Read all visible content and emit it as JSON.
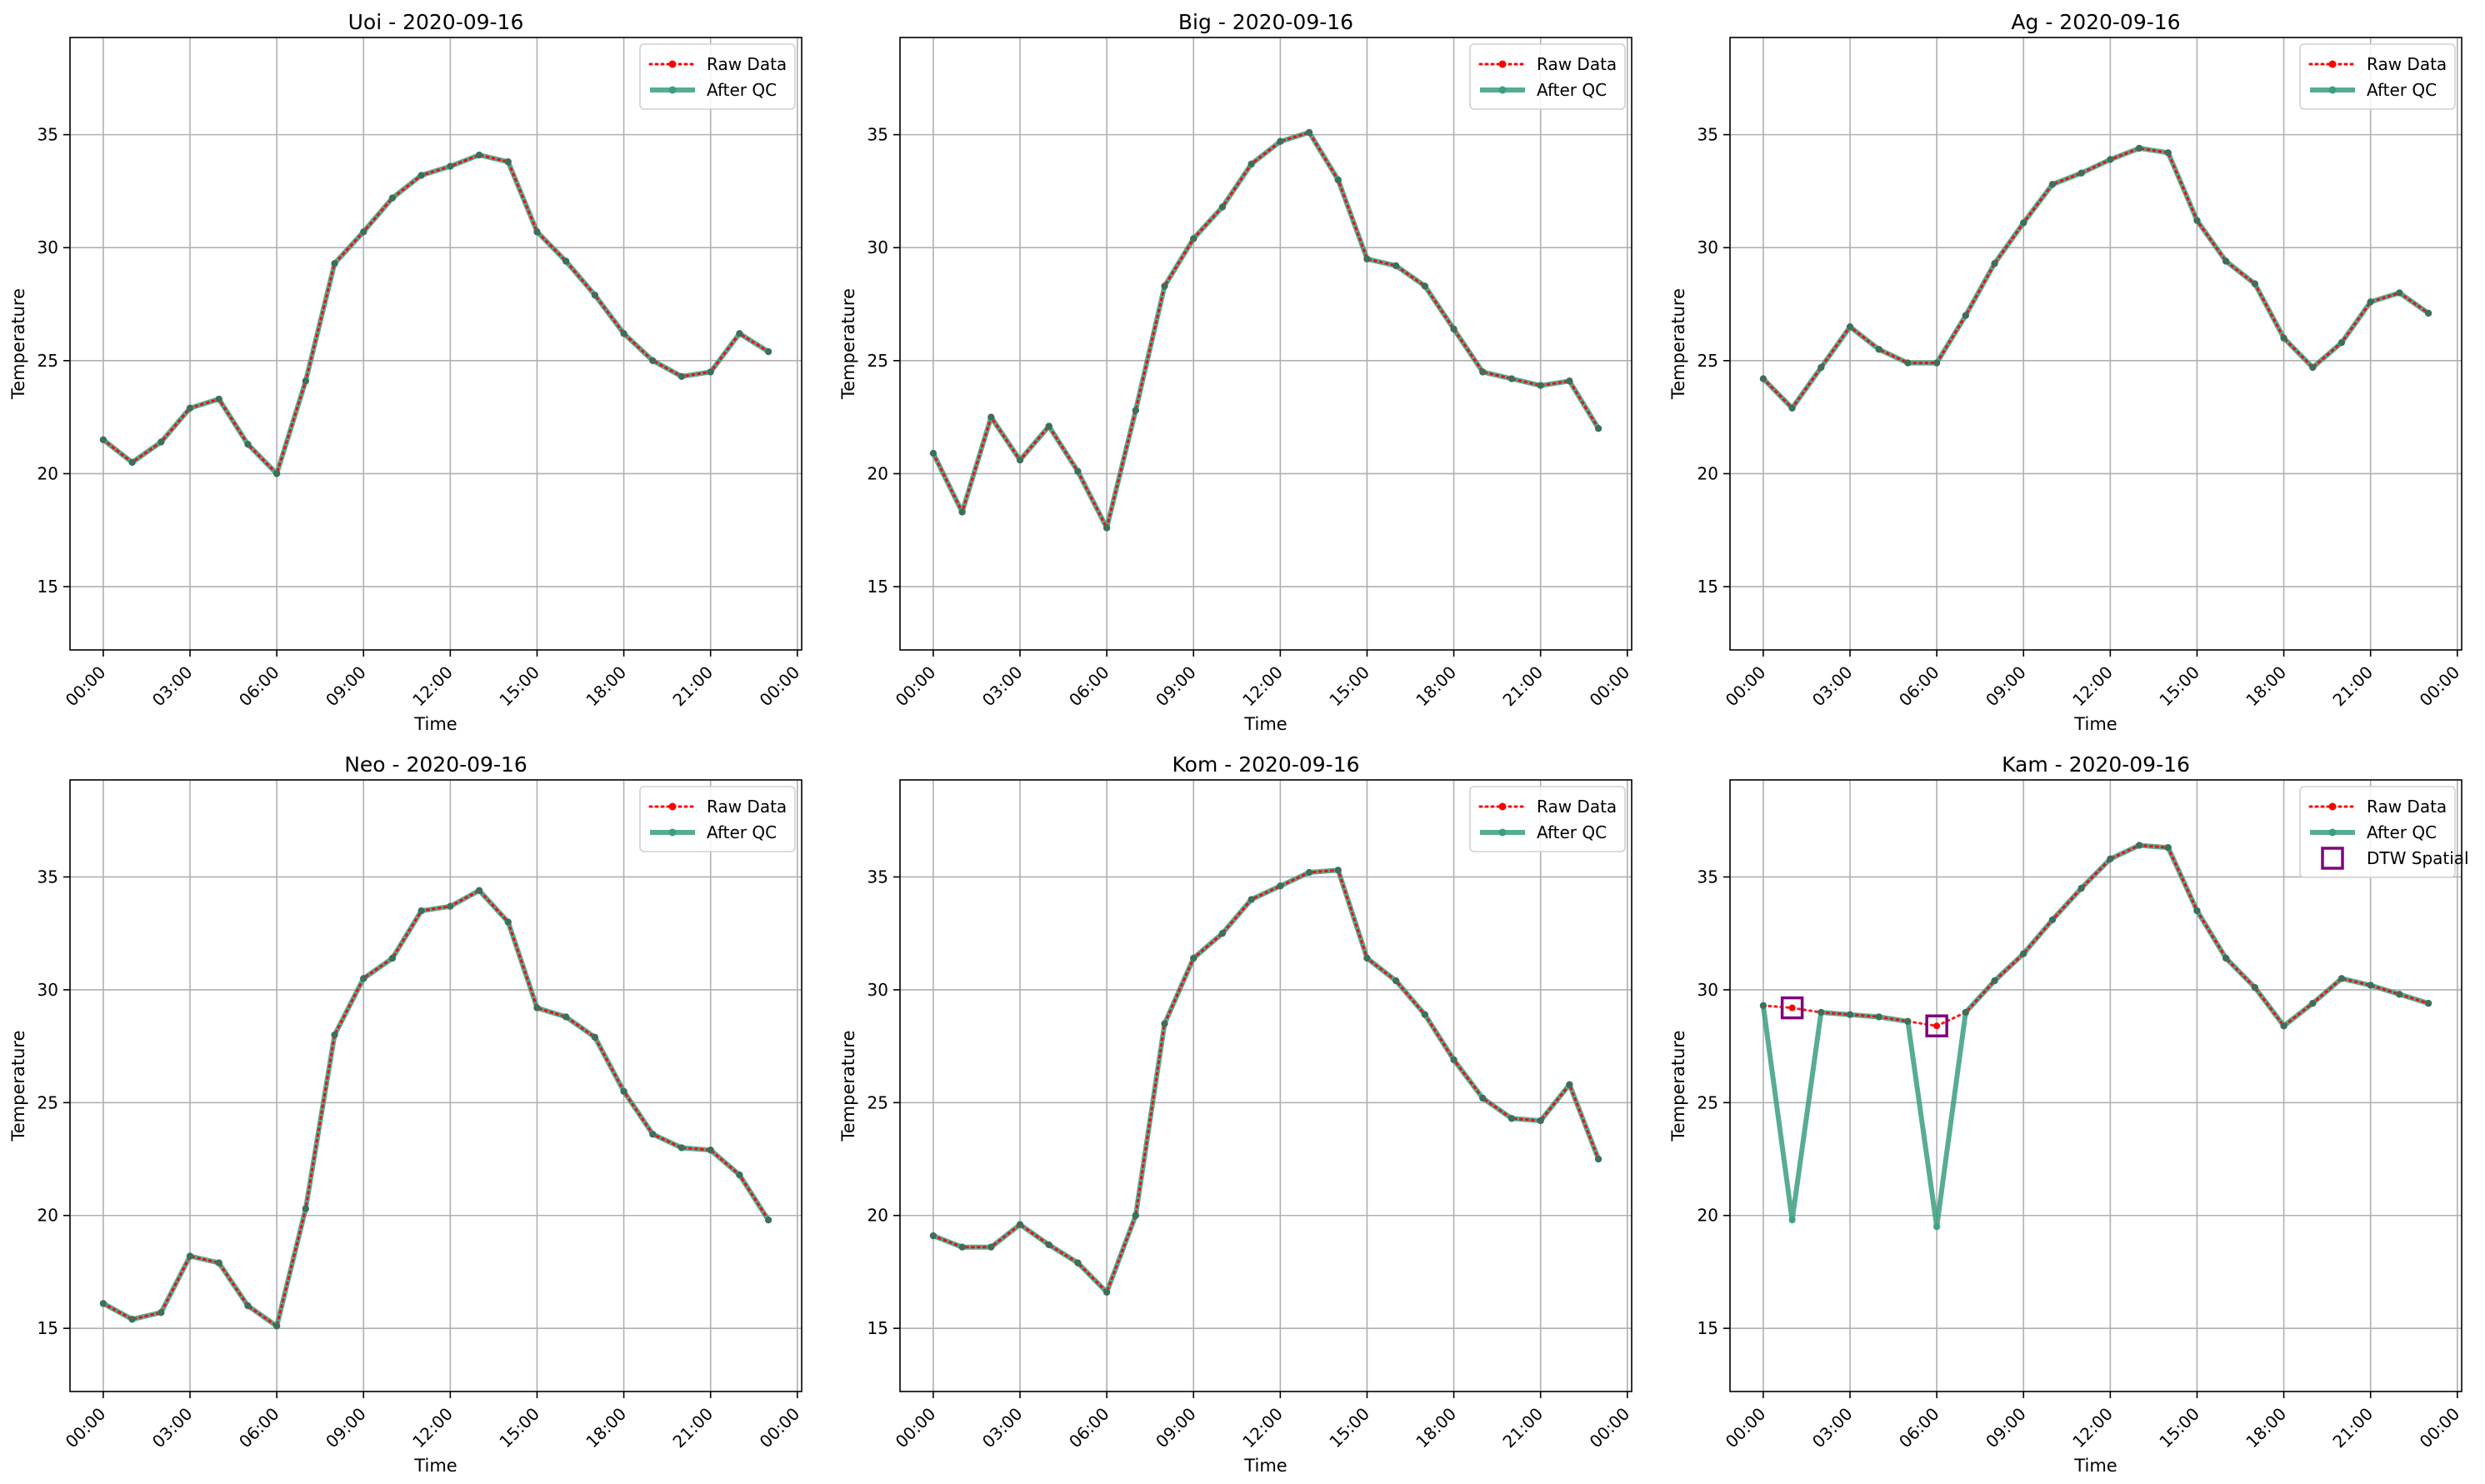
{
  "chart_data": [
    {
      "type": "line",
      "title": "Uoi - 2020-09-16",
      "xlabel": "Time",
      "ylabel": "Temperature",
      "x": [
        "00:00",
        "01:00",
        "02:00",
        "03:00",
        "04:00",
        "05:00",
        "06:00",
        "07:00",
        "08:00",
        "09:00",
        "10:00",
        "11:00",
        "12:00",
        "13:00",
        "14:00",
        "15:00",
        "16:00",
        "17:00",
        "18:00",
        "19:00",
        "20:00",
        "21:00",
        "22:00",
        "23:00"
      ],
      "xticks": [
        "00:00",
        "03:00",
        "06:00",
        "09:00",
        "12:00",
        "15:00",
        "18:00",
        "21:00",
        "00:00"
      ],
      "yticks": [
        15,
        20,
        25,
        30,
        35
      ],
      "ylim": [
        12.2,
        39.3
      ],
      "grid": true,
      "legend": "top-right",
      "series": [
        {
          "name": "Raw Data",
          "values": [
            21.5,
            20.5,
            21.4,
            22.9,
            23.3,
            21.3,
            20.0,
            24.1,
            29.3,
            30.7,
            32.2,
            33.2,
            33.6,
            34.1,
            33.8,
            30.7,
            29.4,
            27.9,
            26.2,
            25.0,
            24.3,
            24.5,
            26.2,
            25.4
          ]
        },
        {
          "name": "After QC",
          "values": [
            21.5,
            20.5,
            21.4,
            22.9,
            23.3,
            21.3,
            20.0,
            24.1,
            29.3,
            30.7,
            32.2,
            33.2,
            33.6,
            34.1,
            33.8,
            30.7,
            29.4,
            27.9,
            26.2,
            25.0,
            24.3,
            24.5,
            26.2,
            25.4
          ]
        }
      ]
    },
    {
      "type": "line",
      "title": "Big - 2020-09-16",
      "xlabel": "Time",
      "ylabel": "Temperature",
      "x": [
        "00:00",
        "01:00",
        "02:00",
        "03:00",
        "04:00",
        "05:00",
        "06:00",
        "07:00",
        "08:00",
        "09:00",
        "10:00",
        "11:00",
        "12:00",
        "13:00",
        "14:00",
        "15:00",
        "16:00",
        "17:00",
        "18:00",
        "19:00",
        "20:00",
        "21:00",
        "22:00",
        "23:00"
      ],
      "xticks": [
        "00:00",
        "03:00",
        "06:00",
        "09:00",
        "12:00",
        "15:00",
        "18:00",
        "21:00",
        "00:00"
      ],
      "yticks": [
        15,
        20,
        25,
        30,
        35
      ],
      "ylim": [
        12.2,
        39.3
      ],
      "grid": true,
      "legend": "top-right",
      "series": [
        {
          "name": "Raw Data",
          "values": [
            20.9,
            18.3,
            22.5,
            20.6,
            22.1,
            20.1,
            17.6,
            22.8,
            28.3,
            30.4,
            31.8,
            33.7,
            34.7,
            35.1,
            33.0,
            29.5,
            29.2,
            28.3,
            26.4,
            24.5,
            24.2,
            23.9,
            24.1,
            22.0
          ]
        },
        {
          "name": "After QC",
          "values": [
            20.9,
            18.3,
            22.5,
            20.6,
            22.1,
            20.1,
            17.6,
            22.8,
            28.3,
            30.4,
            31.8,
            33.7,
            34.7,
            35.1,
            33.0,
            29.5,
            29.2,
            28.3,
            26.4,
            24.5,
            24.2,
            23.9,
            24.1,
            22.0
          ]
        }
      ]
    },
    {
      "type": "line",
      "title": "Ag - 2020-09-16",
      "xlabel": "Time",
      "ylabel": "Temperature",
      "x": [
        "00:00",
        "01:00",
        "02:00",
        "03:00",
        "04:00",
        "05:00",
        "06:00",
        "07:00",
        "08:00",
        "09:00",
        "10:00",
        "11:00",
        "12:00",
        "13:00",
        "14:00",
        "15:00",
        "16:00",
        "17:00",
        "18:00",
        "19:00",
        "20:00",
        "21:00",
        "22:00",
        "23:00"
      ],
      "xticks": [
        "00:00",
        "03:00",
        "06:00",
        "09:00",
        "12:00",
        "15:00",
        "18:00",
        "21:00",
        "00:00"
      ],
      "yticks": [
        15,
        20,
        25,
        30,
        35
      ],
      "ylim": [
        12.2,
        39.3
      ],
      "grid": true,
      "legend": "top-right",
      "series": [
        {
          "name": "Raw Data",
          "values": [
            24.2,
            22.9,
            24.7,
            26.5,
            25.5,
            24.9,
            24.9,
            27.0,
            29.3,
            31.1,
            32.8,
            33.3,
            33.9,
            34.4,
            34.2,
            31.2,
            29.4,
            28.4,
            26.0,
            24.7,
            25.8,
            27.6,
            28.0,
            27.1
          ]
        },
        {
          "name": "After QC",
          "values": [
            24.2,
            22.9,
            24.7,
            26.5,
            25.5,
            24.9,
            24.9,
            27.0,
            29.3,
            31.1,
            32.8,
            33.3,
            33.9,
            34.4,
            34.2,
            31.2,
            29.4,
            28.4,
            26.0,
            24.7,
            25.8,
            27.6,
            28.0,
            27.1
          ]
        }
      ]
    },
    {
      "type": "line",
      "title": "Neo - 2020-09-16",
      "xlabel": "Time",
      "ylabel": "Temperature",
      "x": [
        "00:00",
        "01:00",
        "02:00",
        "03:00",
        "04:00",
        "05:00",
        "06:00",
        "07:00",
        "08:00",
        "09:00",
        "10:00",
        "11:00",
        "12:00",
        "13:00",
        "14:00",
        "15:00",
        "16:00",
        "17:00",
        "18:00",
        "19:00",
        "20:00",
        "21:00",
        "22:00",
        "23:00"
      ],
      "xticks": [
        "00:00",
        "03:00",
        "06:00",
        "09:00",
        "12:00",
        "15:00",
        "18:00",
        "21:00",
        "00:00"
      ],
      "yticks": [
        15,
        20,
        25,
        30,
        35
      ],
      "ylim": [
        12.2,
        39.3
      ],
      "grid": true,
      "legend": "top-right",
      "series": [
        {
          "name": "Raw Data",
          "values": [
            16.1,
            15.4,
            15.7,
            18.2,
            17.9,
            16.0,
            15.1,
            20.3,
            28.0,
            30.5,
            31.4,
            33.5,
            33.7,
            34.4,
            33.0,
            29.2,
            28.8,
            27.9,
            25.5,
            23.6,
            23.0,
            22.9,
            21.8,
            19.8
          ]
        },
        {
          "name": "After QC",
          "values": [
            16.1,
            15.4,
            15.7,
            18.2,
            17.9,
            16.0,
            15.1,
            20.3,
            28.0,
            30.5,
            31.4,
            33.5,
            33.7,
            34.4,
            33.0,
            29.2,
            28.8,
            27.9,
            25.5,
            23.6,
            23.0,
            22.9,
            21.8,
            19.8
          ]
        }
      ]
    },
    {
      "type": "line",
      "title": "Kom - 2020-09-16",
      "xlabel": "Time",
      "ylabel": "Temperature",
      "x": [
        "00:00",
        "01:00",
        "02:00",
        "03:00",
        "04:00",
        "05:00",
        "06:00",
        "07:00",
        "08:00",
        "09:00",
        "10:00",
        "11:00",
        "12:00",
        "13:00",
        "14:00",
        "15:00",
        "16:00",
        "17:00",
        "18:00",
        "19:00",
        "20:00",
        "21:00",
        "22:00",
        "23:00"
      ],
      "xticks": [
        "00:00",
        "03:00",
        "06:00",
        "09:00",
        "12:00",
        "15:00",
        "18:00",
        "21:00",
        "00:00"
      ],
      "yticks": [
        15,
        20,
        25,
        30,
        35
      ],
      "ylim": [
        12.2,
        39.3
      ],
      "grid": true,
      "legend": "top-right",
      "series": [
        {
          "name": "Raw Data",
          "values": [
            19.1,
            18.6,
            18.6,
            19.6,
            18.7,
            17.9,
            16.6,
            20.0,
            28.5,
            31.4,
            32.5,
            34.0,
            34.6,
            35.2,
            35.3,
            31.4,
            30.4,
            28.9,
            26.9,
            25.2,
            24.3,
            24.2,
            25.8,
            22.5
          ]
        },
        {
          "name": "After QC",
          "values": [
            19.1,
            18.6,
            18.6,
            19.6,
            18.7,
            17.9,
            16.6,
            20.0,
            28.5,
            31.4,
            32.5,
            34.0,
            34.6,
            35.2,
            35.3,
            31.4,
            30.4,
            28.9,
            26.9,
            25.2,
            24.3,
            24.2,
            25.8,
            22.5
          ]
        }
      ]
    },
    {
      "type": "line",
      "title": "Kam - 2020-09-16",
      "xlabel": "Time",
      "ylabel": "Temperature",
      "x": [
        "00:00",
        "01:00",
        "02:00",
        "03:00",
        "04:00",
        "05:00",
        "06:00",
        "07:00",
        "08:00",
        "09:00",
        "10:00",
        "11:00",
        "12:00",
        "13:00",
        "14:00",
        "15:00",
        "16:00",
        "17:00",
        "18:00",
        "19:00",
        "20:00",
        "21:00",
        "22:00",
        "23:00"
      ],
      "xticks": [
        "00:00",
        "03:00",
        "06:00",
        "09:00",
        "12:00",
        "15:00",
        "18:00",
        "21:00",
        "00:00"
      ],
      "yticks": [
        15,
        20,
        25,
        30,
        35
      ],
      "ylim": [
        12.2,
        39.3
      ],
      "grid": true,
      "legend": "top-right",
      "series": [
        {
          "name": "Raw Data",
          "values": [
            29.3,
            29.2,
            29.0,
            28.9,
            28.8,
            28.6,
            28.4,
            29.0,
            30.4,
            31.6,
            33.1,
            34.5,
            35.8,
            36.4,
            36.3,
            33.5,
            31.4,
            30.1,
            28.4,
            29.4,
            30.5,
            30.2,
            29.8,
            29.4
          ]
        },
        {
          "name": "After QC",
          "values": [
            29.3,
            19.8,
            29.0,
            28.9,
            28.8,
            28.6,
            19.5,
            29.0,
            30.4,
            31.6,
            33.1,
            34.5,
            35.8,
            36.4,
            36.3,
            33.5,
            31.4,
            30.1,
            28.4,
            29.4,
            30.5,
            30.2,
            29.8,
            29.4
          ]
        }
      ],
      "flags": {
        "name": "DTW Spatial",
        "points": [
          {
            "x": "01:00",
            "y": 29.2
          },
          {
            "x": "06:00",
            "y": 28.4
          }
        ]
      }
    }
  ],
  "colors": {
    "raw": "#ff0000",
    "qc": "#3a9e81",
    "flag": "#800080",
    "grid": "#b0b0b0",
    "axis": "#000000"
  }
}
